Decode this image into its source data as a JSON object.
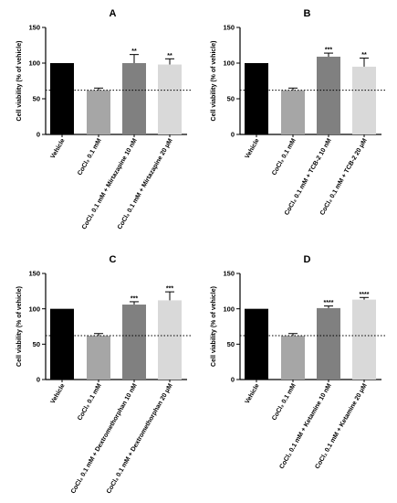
{
  "chart_data": [
    {
      "type": "bar",
      "panel_label": "A",
      "categories": [
        "Vehicle",
        "CoCl₂ 0.1 mM",
        "CoCl₂ 0.1 mM + Mirtazapine 10 nM",
        "CoCl₂ 0.1 mM + Mirtazapine 20 μM"
      ],
      "values": [
        100,
        62,
        100,
        98
      ],
      "errors": [
        0,
        3,
        12,
        8
      ],
      "significance": [
        "",
        "",
        "**",
        "**"
      ],
      "bar_colors": [
        "#000000",
        "#a6a6a6",
        "#808080",
        "#d9d9d9"
      ],
      "ylabel": "Cell viability (% of vehicle)",
      "ylim": [
        0,
        150
      ],
      "yticks": [
        0,
        50,
        100,
        150
      ],
      "reference_line": 62
    },
    {
      "type": "bar",
      "panel_label": "B",
      "categories": [
        "Vehicle",
        "CoCl₂ 0.1 mM",
        "CoCl₂ 0.1 mM + TCB-2 10 nM",
        "CoCl₂ 0.1 mM + TCB-2 20 μM"
      ],
      "values": [
        100,
        62,
        109,
        95
      ],
      "errors": [
        0,
        3,
        5,
        12
      ],
      "significance": [
        "",
        "",
        "***",
        "**"
      ],
      "bar_colors": [
        "#000000",
        "#a6a6a6",
        "#808080",
        "#d9d9d9"
      ],
      "ylabel": "Cell viability (% of vehicle)",
      "ylim": [
        0,
        150
      ],
      "yticks": [
        0,
        50,
        100,
        150
      ],
      "reference_line": 62
    },
    {
      "type": "bar",
      "panel_label": "C",
      "categories": [
        "Vehicle",
        "CoCl₂ 0.1 mM",
        "CoCl₂ 0.1 mM + Dextromethorphan 10 nM",
        "CoCl₂ 0.1 mM + Dextromethorphan 20 μM"
      ],
      "values": [
        100,
        62,
        106,
        112
      ],
      "errors": [
        0,
        3,
        4,
        12
      ],
      "significance": [
        "",
        "",
        "***",
        "***"
      ],
      "bar_colors": [
        "#000000",
        "#a6a6a6",
        "#808080",
        "#d9d9d9"
      ],
      "ylabel": "Cell viability (% of vehicle)",
      "ylim": [
        0,
        150
      ],
      "yticks": [
        0,
        50,
        100,
        150
      ],
      "reference_line": 62
    },
    {
      "type": "bar",
      "panel_label": "D",
      "categories": [
        "Vehicle",
        "CoCl₂ 0.1 mM",
        "CoCl₂ 0.1 mM + Ketamine 10 nM",
        "CoCl₂ 0.1 mM + Ketamine 20 μM"
      ],
      "values": [
        100,
        62,
        101,
        113
      ],
      "errors": [
        0,
        3,
        3,
        3
      ],
      "significance": [
        "",
        "",
        "****",
        "****"
      ],
      "bar_colors": [
        "#000000",
        "#a6a6a6",
        "#808080",
        "#d9d9d9"
      ],
      "ylabel": "Cell viability (% of vehicle)",
      "ylim": [
        0,
        150
      ],
      "yticks": [
        0,
        50,
        100,
        150
      ],
      "reference_line": 62
    }
  ]
}
